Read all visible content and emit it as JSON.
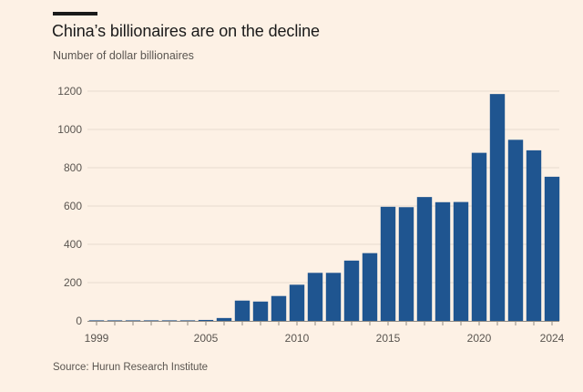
{
  "header": {
    "title": "China’s billionaires are on the decline",
    "subtitle": "Number of dollar billionaires"
  },
  "footer": {
    "source": "Source: Hurun Research Institute"
  },
  "colors": {
    "background": "#fdf1e5",
    "bar": "#1f5590",
    "gridline": "#e6dccf",
    "text": "#1a1a1a",
    "muted_text": "#5a5550"
  },
  "chart_data": {
    "type": "bar",
    "title": "China’s billionaires are on the decline",
    "subtitle": "Number of dollar billionaires",
    "xlabel": "",
    "ylabel": "",
    "categories": [
      "1999",
      "2000",
      "2001",
      "2002",
      "2003",
      "2004",
      "2005",
      "2006",
      "2007",
      "2008",
      "2009",
      "2010",
      "2011",
      "2012",
      "2013",
      "2014",
      "2015",
      "2016",
      "2017",
      "2018",
      "2019",
      "2020",
      "2021",
      "2022",
      "2023",
      "2024"
    ],
    "values": [
      0,
      1,
      1,
      1,
      1,
      2,
      5,
      15,
      106,
      101,
      130,
      189,
      251,
      251,
      315,
      354,
      596,
      594,
      647,
      620,
      621,
      878,
      1185,
      946,
      891,
      753
    ],
    "ylim": [
      0,
      1200
    ],
    "yticks": [
      0,
      200,
      400,
      600,
      800,
      1000,
      1200
    ],
    "xticks": [
      "1999",
      "2005",
      "2010",
      "2015",
      "2020",
      "2024"
    ],
    "grid": true,
    "legend": "none"
  }
}
